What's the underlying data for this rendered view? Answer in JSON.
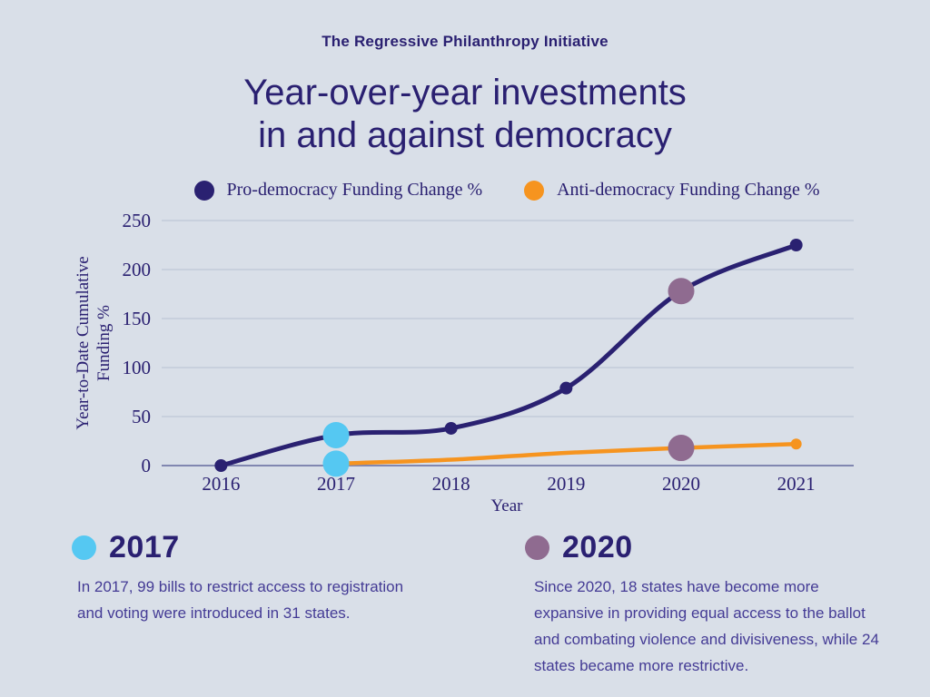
{
  "header": {
    "kicker": "The Regressive Philanthropy Initiative",
    "title_line1": "Year-over-year investments",
    "title_line2": "in and against democracy"
  },
  "colors": {
    "background": "#d9dfe8",
    "navy": "#2a2171",
    "orange": "#f6941f",
    "light_blue": "#55c8f2",
    "mauve": "#8f6b90",
    "gridline": "#c3cbd9",
    "axis_line": "#8187b0",
    "heading_text": "#2a2071",
    "body_text": "#443b95"
  },
  "chart_data": {
    "type": "line",
    "x": [
      "2016",
      "2017",
      "2018",
      "2019",
      "2020",
      "2021"
    ],
    "xlabel": "Year",
    "ylabel_line1": "Year-to-Date Cumulative",
    "ylabel_line2": "Funding %",
    "ylim": [
      0,
      250
    ],
    "yticks": [
      0,
      50,
      100,
      150,
      200,
      250
    ],
    "grid": true,
    "legend_position": "top",
    "series": [
      {
        "name": "Pro-democracy Funding Change %",
        "color": "#2a2171",
        "markers": "all",
        "values": [
          0,
          31,
          38,
          79,
          178,
          225
        ]
      },
      {
        "name": "Anti-democracy Funding Change %",
        "color": "#f6941f",
        "markers": "ends",
        "values": [
          null,
          2,
          6,
          13,
          18,
          22
        ]
      }
    ],
    "highlights": [
      {
        "label": "2017",
        "color": "#55c8f2",
        "points": [
          [
            "2017",
            31
          ],
          [
            "2017",
            2
          ]
        ]
      },
      {
        "label": "2020",
        "color": "#8f6b90",
        "points": [
          [
            "2020",
            178
          ],
          [
            "2020",
            18
          ]
        ]
      }
    ]
  },
  "annotations": [
    {
      "year": "2017",
      "dot_color": "#55c8f2",
      "lines": [
        "In 2017, 99 bills to restrict access to registration",
        "and voting were introduced in 31 states."
      ]
    },
    {
      "year": "2020",
      "dot_color": "#8f6b90",
      "lines": [
        "Since 2020, 18 states have become more",
        "expansive in providing equal access to the ballot",
        "and combating violence and divisiveness, while 24",
        "states became more restrictive."
      ]
    }
  ]
}
